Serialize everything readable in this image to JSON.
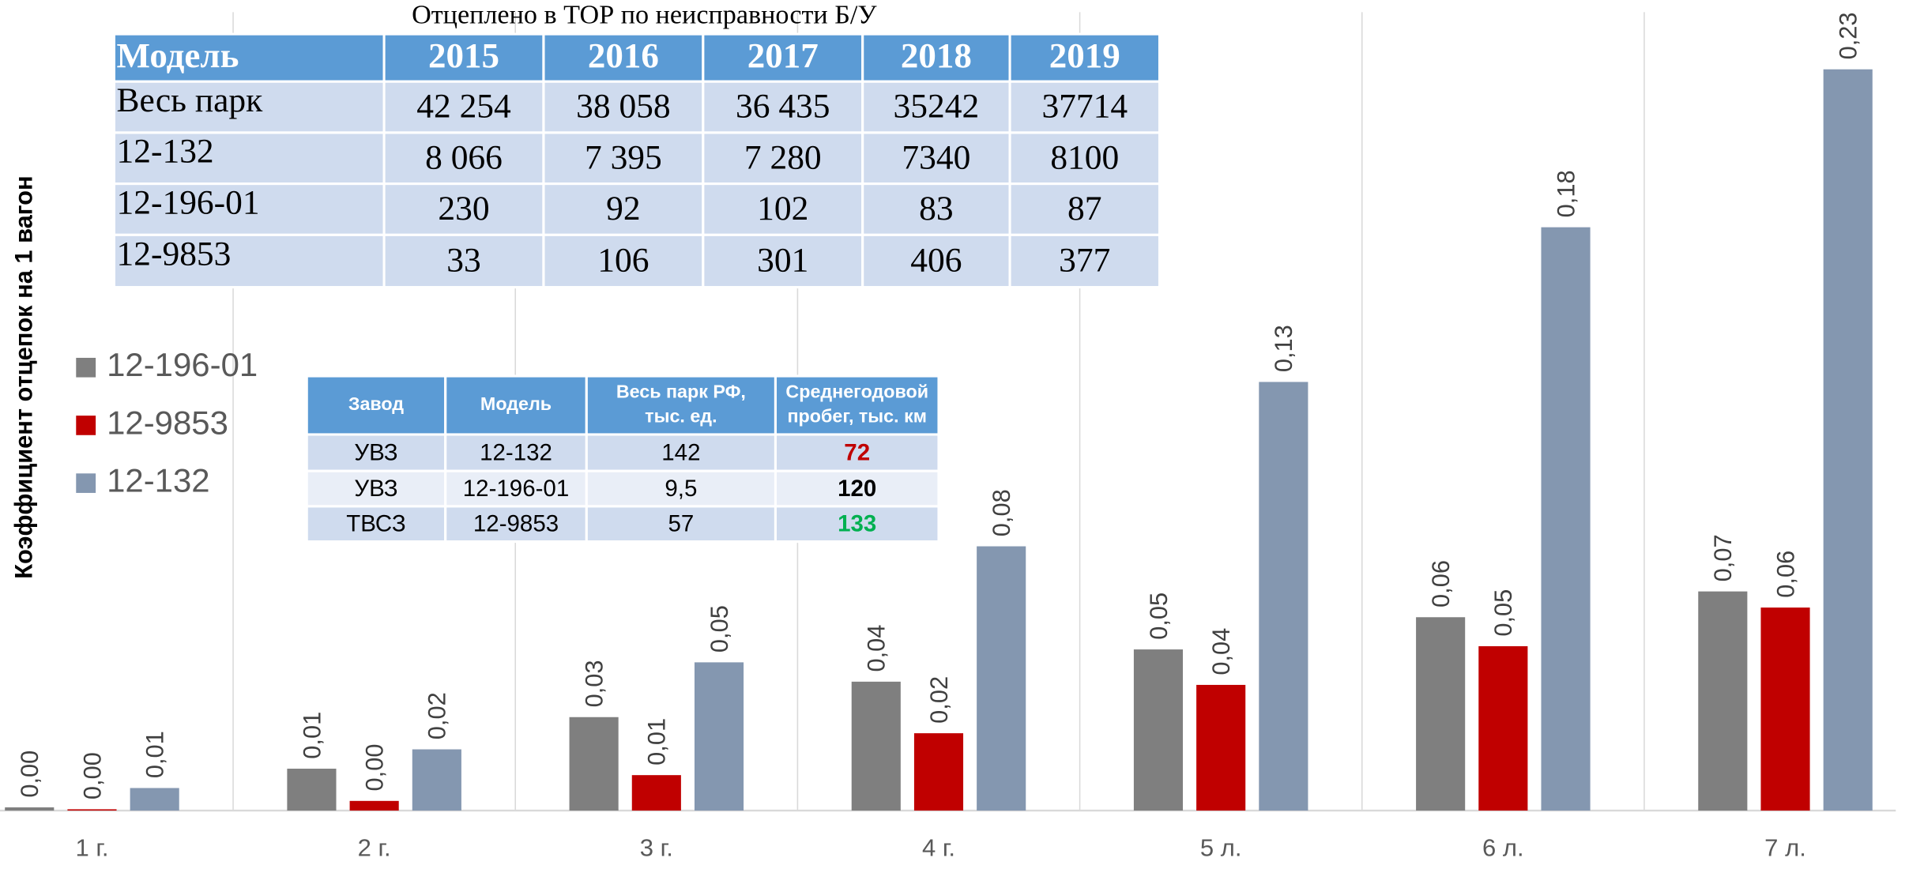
{
  "chart_data": {
    "type": "bar",
    "y_label": "Коэффициент отцепок на 1 вагон",
    "categories": [
      "1 г.",
      "2 г.",
      "3 г.",
      "4 г.",
      "5 л.",
      "6 л.",
      "7 л."
    ],
    "series": [
      {
        "name": "12-196-01",
        "color": "#7f7f7f",
        "values": [
          0.001,
          0.013,
          0.029,
          0.04,
          0.05,
          0.06,
          0.068
        ],
        "value_labels": [
          "0,00",
          "0,01",
          "0,03",
          "0,04",
          "0,05",
          "0,06",
          "0,07"
        ]
      },
      {
        "name": "12-9853",
        "color": "#c00000",
        "values": [
          0.0004,
          0.003,
          0.011,
          0.024,
          0.039,
          0.051,
          0.063
        ],
        "value_labels": [
          "0,00",
          "0,00",
          "0,01",
          "0,02",
          "0,04",
          "0,05",
          "0,06"
        ]
      },
      {
        "name": "12-132",
        "color": "#8497b0",
        "values": [
          0.007,
          0.019,
          0.046,
          0.082,
          0.133,
          0.181,
          0.23
        ],
        "value_labels": [
          "0,01",
          "0,02",
          "0,05",
          "0,08",
          "0,13",
          "0,18",
          "0,23"
        ]
      }
    ],
    "ylim": [
      0,
      0.25
    ],
    "legend": "left"
  },
  "tor_table": {
    "title": "Отцеплено в ТОР по неисправности Б/У",
    "header": [
      "Модель",
      "2015",
      "2016",
      "2017",
      "2018",
      "2019"
    ],
    "rows": [
      [
        "Весь парк",
        "42 254",
        "38 058",
        "36 435",
        "35242",
        "37714"
      ],
      [
        "12-132",
        "8 066",
        "7 395",
        "7 280",
        "7340",
        "8100"
      ],
      [
        "12-196-01",
        "230",
        "92",
        "102",
        "83",
        "87"
      ],
      [
        "12-9853",
        "33",
        "106",
        "301",
        "406",
        "377"
      ]
    ]
  },
  "plant_table": {
    "header": [
      [
        "Завод"
      ],
      [
        "Модель"
      ],
      [
        "Весь парк РФ,",
        "тыс. ед."
      ],
      [
        "Среднегодовой",
        "пробег, тыс. км"
      ]
    ],
    "rows": [
      [
        "УВЗ",
        "12-132",
        "142",
        "72"
      ],
      [
        "УВЗ",
        "12-196-01",
        "9,5",
        "120"
      ],
      [
        "ТВСЗ",
        "12-9853",
        "57",
        "133"
      ]
    ],
    "highlight_colors": [
      "#c00000",
      "#000000",
      "#00b050"
    ]
  }
}
